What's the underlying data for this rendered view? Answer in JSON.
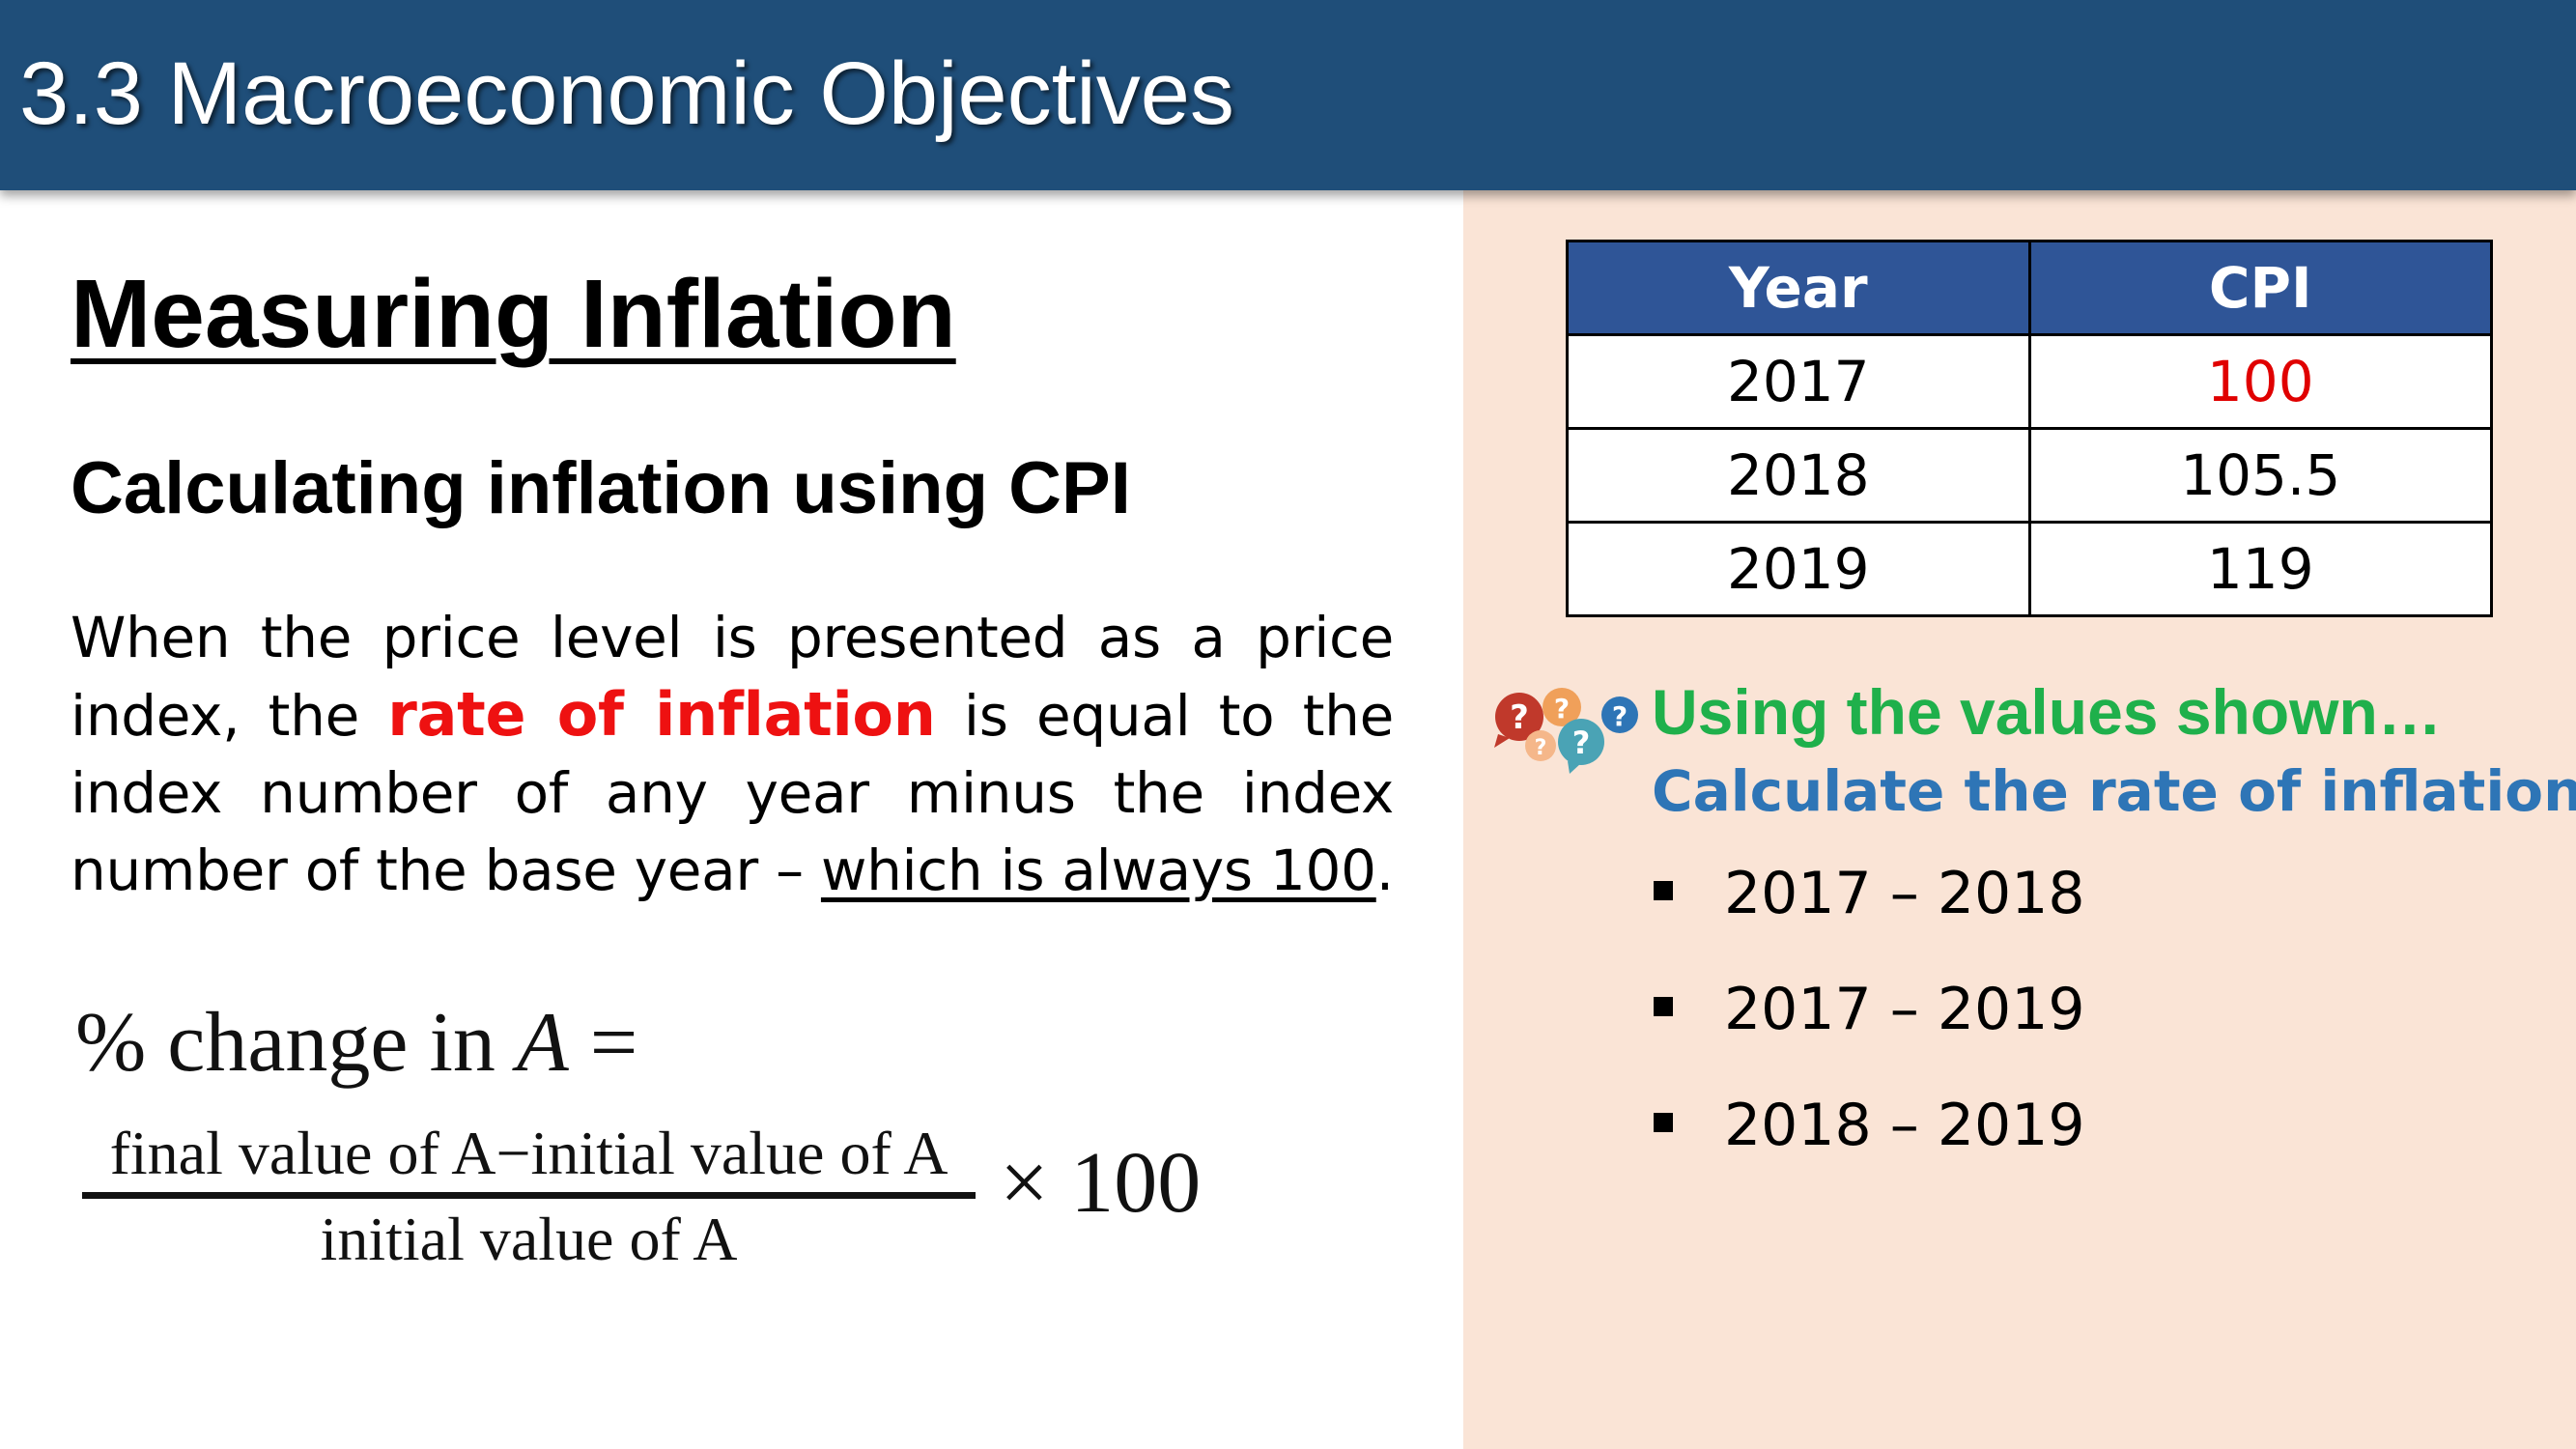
{
  "header": {
    "title": "3.3 Macroeconomic Objectives",
    "background_color": "#1f4e79"
  },
  "main": {
    "heading": "Measuring Inflation",
    "subheading": "Calculating inflation using CPI",
    "paragraph": {
      "part1": "When the price level is presented as a price index, the ",
      "highlight": "rate of inflation",
      "part2": " is equal to the index number of any year minus the index number of the base year – ",
      "underlined": "which is always 100",
      "part3": "."
    },
    "formula": {
      "lhs_prefix": "% change in ",
      "lhs_var": "A",
      "equals": "=",
      "numerator": "final value of A−initial value of A",
      "denominator": "initial value of A",
      "multiplier": "× 100"
    }
  },
  "table": {
    "headers": [
      "Year",
      "CPI"
    ],
    "rows": [
      [
        "2017",
        "100"
      ],
      [
        "2018",
        "105.5"
      ],
      [
        "2019",
        "119"
      ]
    ],
    "header_color": "#2f5597",
    "highlight_color": "#e00000"
  },
  "panel": {
    "background_color": "#fae4d6",
    "icon": "question-bubbles-icon",
    "prompt": "Using the values shown…",
    "instruction": "Calculate the rate of inflation:",
    "items": [
      "2017 – 2018",
      "2017 – 2019",
      "2018 – 2019"
    ]
  }
}
